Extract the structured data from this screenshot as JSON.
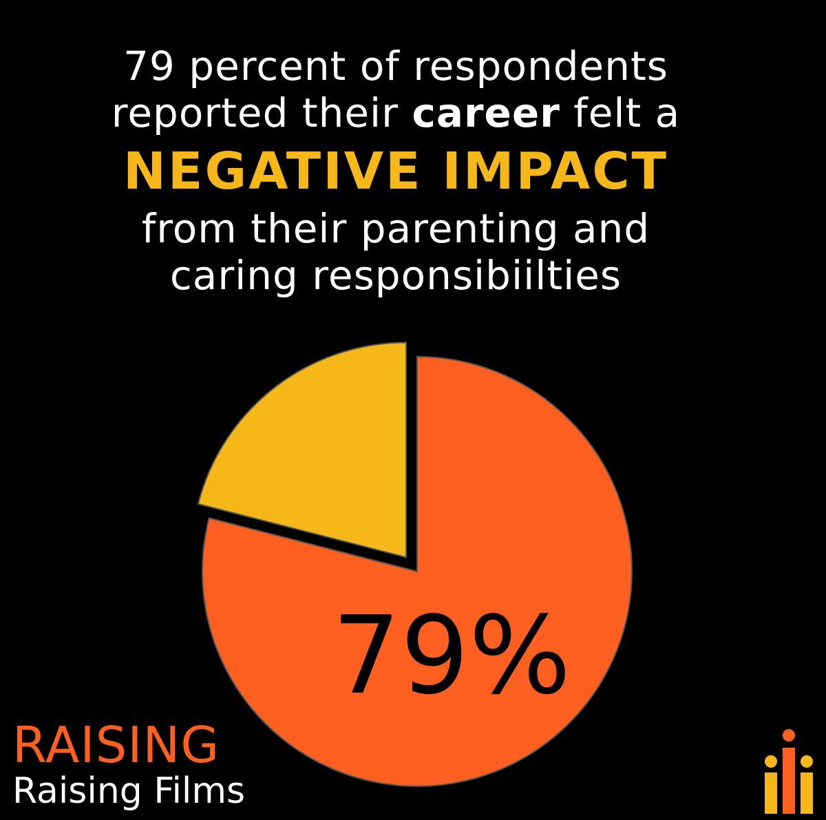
{
  "headline": {
    "line1": "79 percent of respondents",
    "line2_pre": "reported their ",
    "line2_bold": "career",
    "line2_post": " felt a",
    "emphasis": "NEGATIVE IMPACT",
    "line4": "from  their parenting  and",
    "line5": "caring  responsibiilties"
  },
  "logo": {
    "wordmark": "RAISING",
    "name": "Raising Films"
  },
  "icons": {
    "brand_mark": "raising-films-bars-icon"
  },
  "colors": {
    "background": "#000000",
    "accent_yellow": "#f5b818",
    "accent_orange": "#ff6020",
    "text": "#ffffff",
    "label": "#000000"
  },
  "chart_data": {
    "type": "pie",
    "slices": [
      {
        "value": 79,
        "color": "#ff6020",
        "label": "79%"
      },
      {
        "value": 21,
        "color": "#f5b818",
        "exploded": true
      }
    ]
  }
}
